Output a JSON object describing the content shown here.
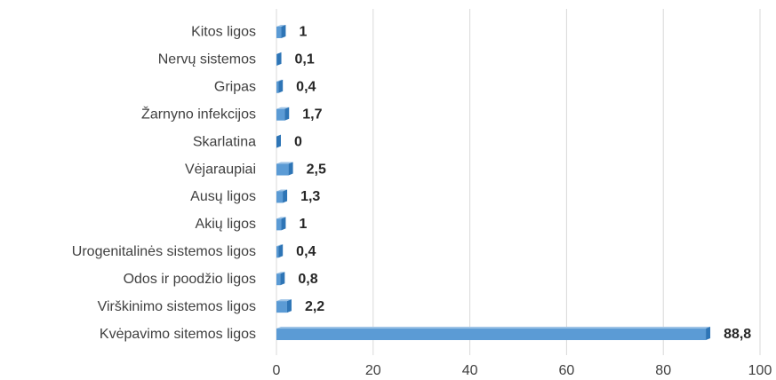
{
  "chart_data": {
    "type": "bar",
    "orientation": "horizontal",
    "categories": [
      "Kitos ligos",
      "Nervų sistemos",
      "Gripas",
      "Žarnyno infekcijos",
      "Skarlatina",
      "Vėjaraupiai",
      "Ausų ligos",
      "Akių ligos",
      "Urogenitalinės sistemos ligos",
      "Odos ir poodžio ligos",
      "Virškinimo sistemos ligos",
      "Kvėpavimo sitemos ligos"
    ],
    "values": [
      1,
      0.1,
      0.4,
      1.7,
      0,
      2.5,
      1.3,
      1,
      0.4,
      0.8,
      2.2,
      88.8
    ],
    "value_labels": [
      "1",
      "0,1",
      "0,4",
      "1,7",
      "0",
      "2,5",
      "1,3",
      "1",
      "0,4",
      "0,8",
      "2,2",
      "88,8"
    ],
    "color": "#5b9bd5",
    "xlim": [
      0,
      100
    ],
    "xticks": [
      0,
      20,
      40,
      60,
      80,
      100
    ],
    "grid": true
  }
}
